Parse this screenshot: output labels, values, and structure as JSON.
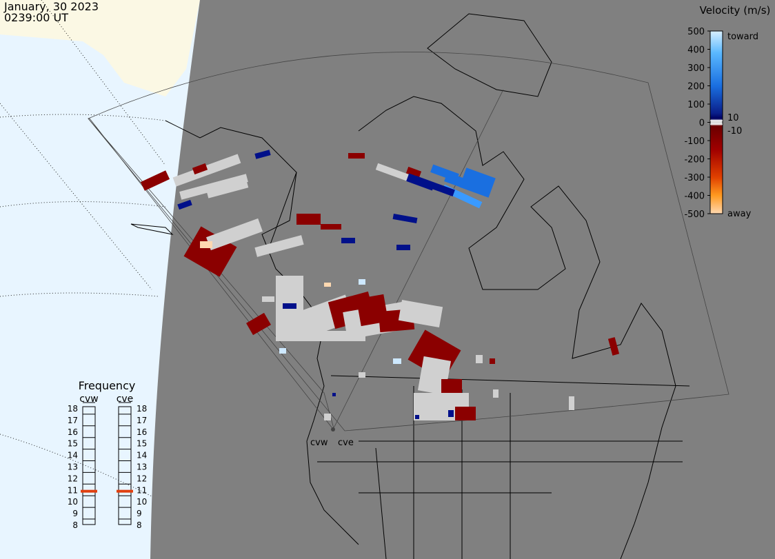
{
  "header": {
    "date": "January, 30 2023",
    "time": "0239:00 UT"
  },
  "velocity_scale": {
    "title": "Velocity (m/s)",
    "ticks": [
      500,
      400,
      300,
      200,
      100,
      0,
      -100,
      -200,
      -300,
      -400,
      -500
    ],
    "inner_ticks": [
      10,
      -10
    ],
    "toward": "toward",
    "away": "away"
  },
  "frequency_panel": {
    "title": "Frequency",
    "ticks": [
      18,
      17,
      16,
      15,
      14,
      13,
      12,
      11,
      10,
      9,
      8
    ],
    "radars": [
      {
        "name": "cvw",
        "frequency": 10.8
      },
      {
        "name": "cve",
        "frequency": 10.8
      }
    ]
  },
  "radar_sites": [
    "cvw",
    "cve"
  ]
}
